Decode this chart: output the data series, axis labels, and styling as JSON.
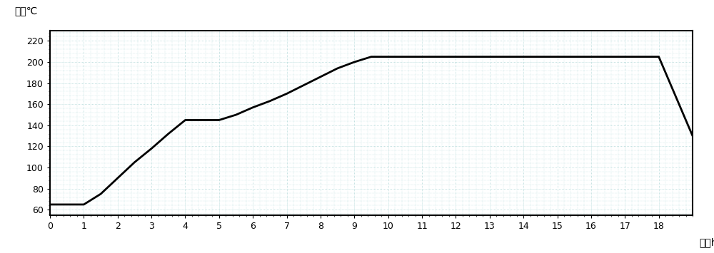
{
  "x": [
    0,
    1,
    1.5,
    2,
    2.5,
    3,
    3.5,
    4,
    4,
    5,
    5,
    5.5,
    6,
    6.5,
    7,
    7.5,
    8,
    8.5,
    9,
    9.5,
    9.5,
    18,
    18,
    19
  ],
  "y": [
    65,
    65,
    75,
    90,
    105,
    118,
    132,
    145,
    145,
    145,
    145,
    150,
    157,
    163,
    170,
    178,
    186,
    194,
    200,
    205,
    205,
    205,
    205,
    130
  ],
  "xlim": [
    0,
    19
  ],
  "ylim": [
    55,
    230
  ],
  "xticks": [
    0,
    1,
    2,
    3,
    4,
    5,
    6,
    7,
    8,
    9,
    10,
    11,
    12,
    13,
    14,
    15,
    16,
    17,
    18
  ],
  "yticks": [
    60,
    80,
    100,
    120,
    140,
    160,
    180,
    200,
    220
  ],
  "ylabel": "温度℃",
  "xlabel_right": "时间h",
  "line_color": "#000000",
  "line_width": 2.0,
  "bg_color": "#ffffff",
  "fig_width": 10.0,
  "fig_height": 3.55,
  "dpi": 100
}
